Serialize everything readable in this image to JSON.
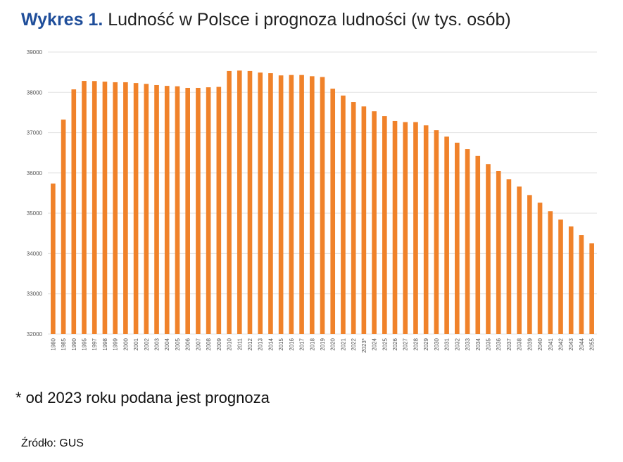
{
  "title_prefix": "Wykres 1.",
  "title_rest": " Ludność w Polsce i prognoza ludności (w tys. osób)",
  "note": "* od 2023 roku podana jest prognoza",
  "source": "Źródło: GUS",
  "chart_data": {
    "type": "bar",
    "title": "Wykres 1. Ludność w Polsce i prognoza ludności (w tys. osób)",
    "xlabel": "",
    "ylabel": "",
    "ylim": [
      32000,
      39000
    ],
    "yticks": [
      32000,
      33000,
      34000,
      35000,
      36000,
      37000,
      38000,
      39000
    ],
    "grid": true,
    "bar_color": "#f0822a",
    "categories": [
      "1980",
      "1985",
      "1990",
      "1995",
      "1997",
      "1998",
      "1999",
      "2000",
      "2001",
      "2002",
      "2003",
      "2004",
      "2005",
      "2006",
      "2007",
      "2008",
      "2009",
      "2010",
      "2011",
      "2012",
      "2013",
      "2014",
      "2015",
      "2016",
      "2017",
      "2018",
      "2019",
      "2020",
      "2021",
      "2022",
      "2023*",
      "2024",
      "2025",
      "2026",
      "2027",
      "2028",
      "2029",
      "2030",
      "2031",
      "2032",
      "2033",
      "2034",
      "2035",
      "2036",
      "2037",
      "2038",
      "2039",
      "2040",
      "2041",
      "2042",
      "2043",
      "2044",
      "2055"
    ],
    "values": [
      35735,
      37323,
      38073,
      38283,
      38280,
      38265,
      38250,
      38250,
      38230,
      38210,
      38180,
      38160,
      38150,
      38110,
      38110,
      38125,
      38135,
      38530,
      38540,
      38530,
      38490,
      38475,
      38420,
      38430,
      38430,
      38400,
      38380,
      38090,
      37920,
      37760,
      37650,
      37530,
      37410,
      37290,
      37260,
      37260,
      37180,
      37060,
      36900,
      36750,
      36590,
      36420,
      36220,
      36050,
      35840,
      35660,
      35450,
      35260,
      35050,
      34840,
      34670,
      34460,
      34250
    ]
  }
}
